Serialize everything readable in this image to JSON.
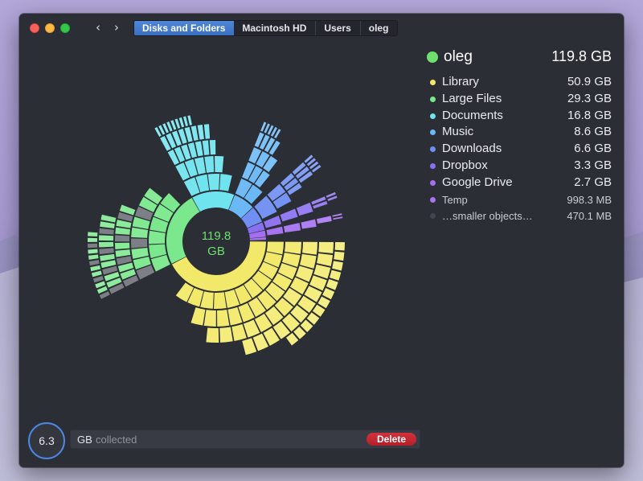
{
  "titlebar": {
    "back_label": "‹",
    "forward_label": "›",
    "breadcrumbs": [
      "Disks and Folders",
      "Macintosh HD",
      "Users",
      "oleg"
    ]
  },
  "chart_data": {
    "type": "sunburst",
    "center_value": "119.8",
    "center_unit": "GB",
    "total_gb": 119.8,
    "segments": [
      {
        "name": "Library",
        "value_gb": 50.9,
        "color": "#f2e96a"
      },
      {
        "name": "Large Files",
        "value_gb": 29.3,
        "color": "#7be88d"
      },
      {
        "name": "Documents",
        "value_gb": 16.8,
        "color": "#6fe3ee"
      },
      {
        "name": "Music",
        "value_gb": 8.6,
        "color": "#6ab8f6"
      },
      {
        "name": "Downloads",
        "value_gb": 6.6,
        "color": "#6f8ff2"
      },
      {
        "name": "Dropbox",
        "value_gb": 3.3,
        "color": "#8a6ff0"
      },
      {
        "name": "Google Drive",
        "value_gb": 2.7,
        "color": "#a36ef0"
      },
      {
        "name": "Temp",
        "value_gb": 0.9983,
        "color": "#a974ee"
      },
      {
        "name": "…smaller objects…",
        "value_gb": 0.4701,
        "color": "#41454e"
      }
    ]
  },
  "legend": {
    "head": {
      "name": "oleg",
      "size": "119.8 GB",
      "color": "#6ee06e"
    },
    "items": [
      {
        "name": "Library",
        "size": "50.9 GB",
        "color": "#f2e96a"
      },
      {
        "name": "Large Files",
        "size": "29.3 GB",
        "color": "#7be88d"
      },
      {
        "name": "Documents",
        "size": "16.8 GB",
        "color": "#6fe3ee"
      },
      {
        "name": "Music",
        "size": "8.6 GB",
        "color": "#6ab8f6"
      },
      {
        "name": "Downloads",
        "size": "6.6 GB",
        "color": "#6f8ff2"
      },
      {
        "name": "Dropbox",
        "size": "3.3 GB",
        "color": "#8a6ff0"
      },
      {
        "name": "Google Drive",
        "size": "2.7 GB",
        "color": "#a36ef0"
      },
      {
        "name": "Temp",
        "size": "998.3  MB",
        "color": "#a974ee"
      },
      {
        "name": "…smaller objects…",
        "size": "470.1  MB",
        "color": "#41454e"
      }
    ]
  },
  "footer": {
    "collected_value": "6.3",
    "collected_unit": "GB",
    "collected_text": "collected",
    "delete_label": "Delete"
  }
}
